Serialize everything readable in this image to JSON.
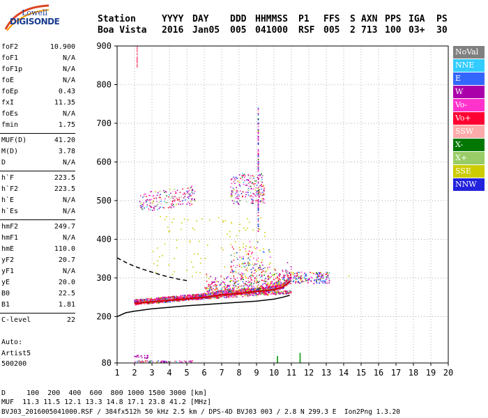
{
  "logo": {
    "line1": "Lowell",
    "line2": "DIGISONDE"
  },
  "header": {
    "labels": [
      "Station",
      "YYYY",
      "DAY",
      "DDD",
      "HHMMSS",
      "P1",
      "FFS",
      "S",
      "AXN",
      "PPS",
      "IGA",
      "PS"
    ],
    "values": [
      "Boa Vista",
      "2016",
      "Jan05",
      "005",
      "041000",
      "RSF",
      "005",
      "2",
      "713",
      "100",
      "03+",
      "30"
    ]
  },
  "params": [
    {
      "k": "foF2",
      "v": "10.900"
    },
    {
      "k": "foF1",
      "v": "N/A"
    },
    {
      "k": "foF1p",
      "v": "N/A"
    },
    {
      "k": "foE",
      "v": "N/A"
    },
    {
      "k": "foEp",
      "v": "0.43"
    },
    {
      "k": "fxI",
      "v": "11.35"
    },
    {
      "k": "foEs",
      "v": "N/A"
    },
    {
      "k": "fmin",
      "v": "1.75"
    },
    {
      "k": "MUF(D)",
      "v": "41.20"
    },
    {
      "k": "M(D)",
      "v": "3.78"
    },
    {
      "k": "D",
      "v": "N/A"
    },
    {
      "k": "h`F",
      "v": "223.5"
    },
    {
      "k": "h`F2",
      "v": "223.5"
    },
    {
      "k": "h`E",
      "v": "N/A"
    },
    {
      "k": "h`Es",
      "v": "N/A"
    },
    {
      "k": "hmF2",
      "v": "249.7"
    },
    {
      "k": "hmF1",
      "v": "N/A"
    },
    {
      "k": "hmE",
      "v": "110.0"
    },
    {
      "k": "yF2",
      "v": "20.7"
    },
    {
      "k": "yF1",
      "v": "N/A"
    },
    {
      "k": "yE",
      "v": "20.0"
    },
    {
      "k": "B0",
      "v": "22.5"
    },
    {
      "k": "B1",
      "v": "1.81"
    },
    {
      "k": "C-level",
      "v": "22"
    }
  ],
  "auto": {
    "line1": "Auto:",
    "line2": "Artist5",
    "line3": "500200"
  },
  "legend": [
    {
      "label": "NoVal",
      "bg": "#808080",
      "fg": "#ffffff"
    },
    {
      "label": "NNE",
      "bg": "#33ccff",
      "fg": "#ffffff"
    },
    {
      "label": "E",
      "bg": "#3366ff",
      "fg": "#ffffff"
    },
    {
      "label": "W",
      "bg": "#aa00aa",
      "fg": "#ffffff"
    },
    {
      "label": "Vo-",
      "bg": "#ff33cc",
      "fg": "#ffffff"
    },
    {
      "label": "Vo+",
      "bg": "#ff0033",
      "fg": "#ffffff"
    },
    {
      "label": "SSW",
      "bg": "#ffaaaa",
      "fg": "#ffffff"
    },
    {
      "label": "X-",
      "bg": "#007700",
      "fg": "#ffffff"
    },
    {
      "label": "X+",
      "bg": "#99cc66",
      "fg": "#ffffff"
    },
    {
      "label": "SSE",
      "bg": "#cccc00",
      "fg": "#ffffff"
    },
    {
      "label": "NNW",
      "bg": "#2222dd",
      "fg": "#ffffff"
    }
  ],
  "bottom": {
    "d_row": "D     100  200  400  600  800 1000 1500 3000 [km]",
    "muf_row": "MUF  11.3 11.5 12.1 13.3 14.8 17.1 23.8 41.2 [MHz]",
    "footer": "BVJ03_2016005041000.RSF / 384fx512h 50 kHz 2.5 km / DPS-4D BVJ03 003 / 2.8 N 299.3 E  Ion2Png 1.3.20"
  },
  "chart_data": {
    "type": "scatter",
    "xlim": [
      1,
      20
    ],
    "ylim": [
      80,
      900
    ],
    "x_ticks": [
      1,
      2,
      3,
      4,
      5,
      6,
      7,
      8,
      9,
      10,
      11,
      12,
      13,
      14,
      15,
      16,
      17,
      18,
      19,
      20
    ],
    "y_ticks": [
      200,
      300,
      400,
      500,
      600,
      700,
      800
    ],
    "y_tick_labels": [
      "80",
      "200",
      "300",
      "400",
      "500",
      "600",
      "700",
      "800",
      "900"
    ],
    "y_tick_values": [
      80,
      200,
      300,
      400,
      500,
      600,
      700,
      800,
      900
    ],
    "grid": true,
    "legend_position": "right",
    "profile_solid": {
      "x": [
        1.0,
        1.5,
        2.0,
        3.0,
        4.0,
        5.0,
        6.0,
        7.0,
        8.0,
        9.0,
        10.0,
        10.5,
        10.9
      ],
      "y": [
        200,
        210,
        214,
        220,
        224,
        228,
        231,
        234,
        237,
        240,
        245,
        250,
        255
      ]
    },
    "profile_dashed": {
      "x": [
        1.0,
        1.5,
        2.0,
        2.5,
        3.0,
        3.5,
        4.0,
        4.5,
        5.0
      ],
      "y": [
        352,
        340,
        330,
        322,
        315,
        308,
        302,
        297,
        293
      ]
    },
    "trace_main": {
      "x": [
        2.0,
        2.5,
        3.0,
        3.5,
        4.0,
        4.5,
        5.0,
        5.5,
        6.0,
        6.5,
        7.0,
        7.5,
        8.0,
        8.5,
        9.0,
        9.5,
        10.0,
        10.5,
        10.9
      ],
      "y": [
        234,
        236,
        238,
        240,
        242,
        244,
        246,
        248,
        250,
        253,
        256,
        258,
        260,
        262,
        265,
        267,
        270,
        276,
        290
      ]
    }
  }
}
